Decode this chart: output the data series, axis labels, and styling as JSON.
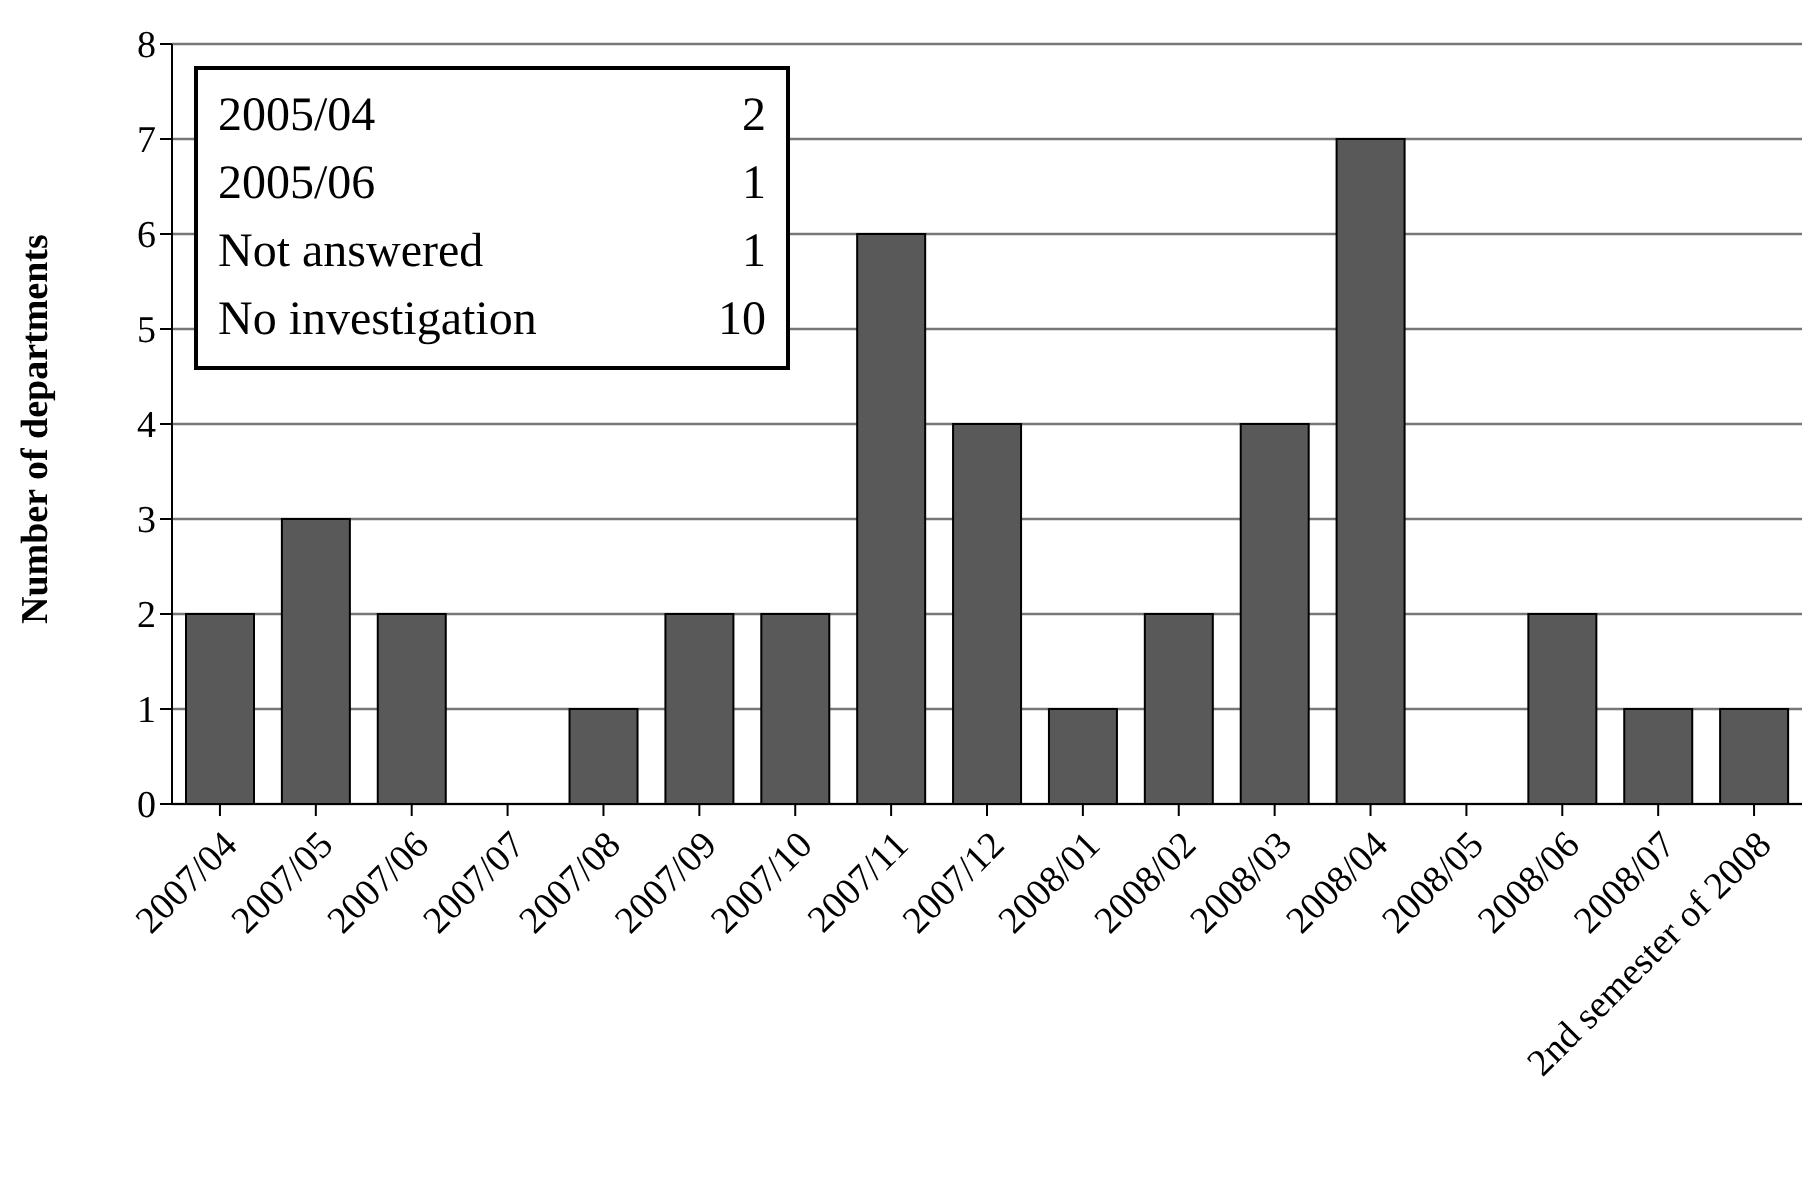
{
  "chart_data": {
    "type": "bar",
    "ylabel": "Number of departments",
    "categories": [
      "2007/04",
      "2007/05",
      "2007/06",
      "2007/07",
      "2007/08",
      "2007/09",
      "2007/10",
      "2007/11",
      "2007/12",
      "2008/01",
      "2008/02",
      "2008/03",
      "2008/04",
      "2008/05",
      "2008/06",
      "2008/07",
      "2nd semester of 2008"
    ],
    "values": [
      2,
      3,
      2,
      0,
      1,
      2,
      2,
      6,
      4,
      1,
      2,
      4,
      7,
      0,
      2,
      1,
      1
    ],
    "color": "#595959",
    "ylim": [
      0,
      8
    ],
    "yticks": [
      0,
      1,
      2,
      3,
      4,
      5,
      6,
      7,
      8
    ],
    "grid": "y",
    "annotations": [
      "2005/04",
      "2",
      "2005/06",
      "1",
      "Not answered",
      "1",
      "No investigation",
      "10"
    ]
  }
}
